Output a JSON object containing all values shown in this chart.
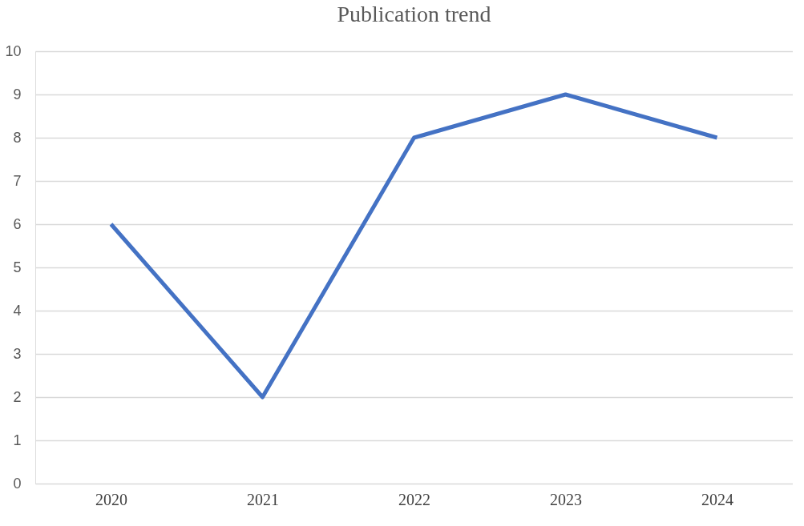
{
  "chart_data": {
    "type": "line",
    "title": "Publication trend",
    "categories": [
      "2020",
      "2021",
      "2022",
      "2023",
      "2024"
    ],
    "series": [
      {
        "color": "#4472c4",
        "values": [
          6,
          2,
          8,
          9,
          8
        ]
      }
    ],
    "ylim": [
      0,
      10
    ],
    "yticks": [
      0,
      1,
      2,
      3,
      4,
      5,
      6,
      7,
      8,
      9,
      10
    ],
    "grid": "y",
    "legend": false,
    "marker": "none",
    "line_style": "solid"
  }
}
